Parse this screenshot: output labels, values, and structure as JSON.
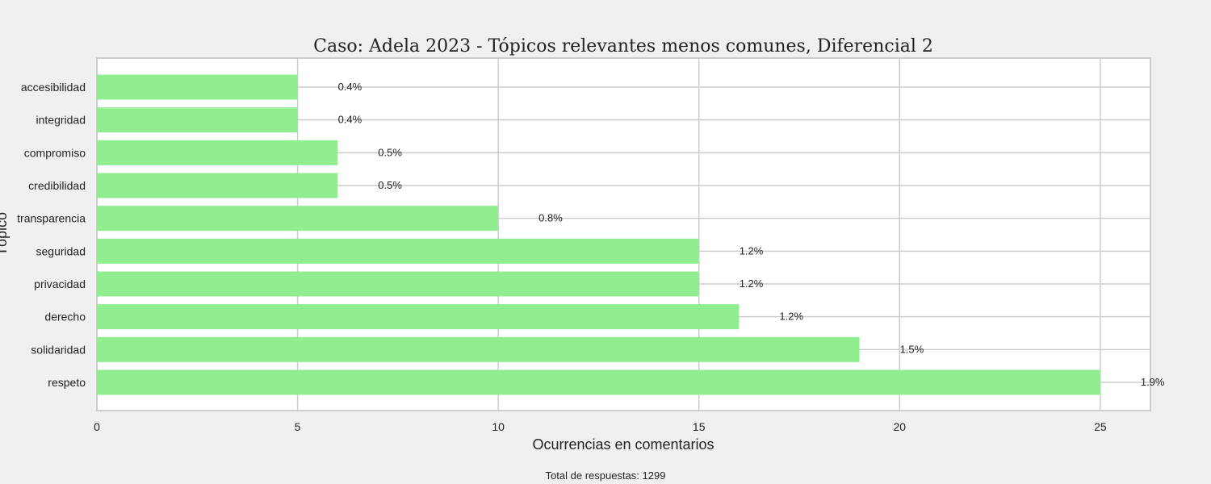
{
  "chart_data": {
    "type": "bar",
    "orientation": "horizontal",
    "title": "Caso: Adela 2023 - Tópicos relevantes menos comunes, Diferencial 2",
    "xlabel": "Ocurrencias en comentarios",
    "ylabel": "Tópico",
    "categories": [
      "accesibilidad",
      "integridad",
      "compromiso",
      "credibilidad",
      "transparencia",
      "seguridad",
      "privacidad",
      "derecho",
      "solidaridad",
      "respeto"
    ],
    "values": [
      5,
      5,
      6,
      6,
      10,
      15,
      15,
      16,
      19,
      25
    ],
    "data_labels": [
      "0.4%",
      "0.4%",
      "0.5%",
      "0.5%",
      "0.8%",
      "1.2%",
      "1.2%",
      "1.2%",
      "1.5%",
      "1.9%"
    ],
    "xlim": [
      0,
      26.25
    ],
    "xticks": [
      0,
      5,
      10,
      15,
      20,
      25
    ],
    "bar_color": "#90ee90",
    "grid": true,
    "footer": "Total de respuestas: 1299"
  },
  "colors": {
    "background": "#f0f0f0",
    "plot_background": "#ffffff",
    "grid": "#cccccc",
    "bar": "#90ee90"
  }
}
